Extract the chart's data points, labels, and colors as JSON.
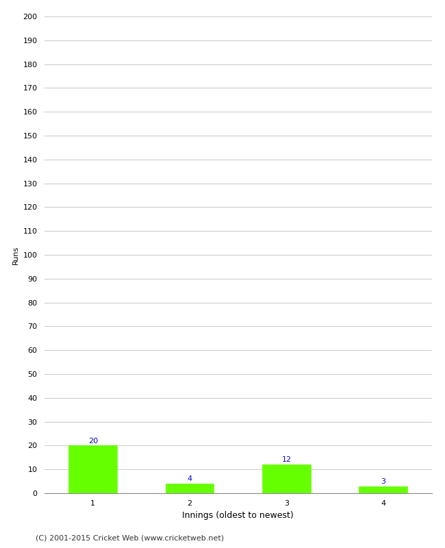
{
  "categories": [
    "1",
    "2",
    "3",
    "4"
  ],
  "values": [
    20,
    4,
    12,
    3
  ],
  "bar_color": "#66ff00",
  "bar_edge_color": "#66ff00",
  "annotation_color": "#0000cc",
  "xlabel": "Innings (oldest to newest)",
  "ylabel": "Runs",
  "ylim": [
    0,
    200
  ],
  "yticks": [
    0,
    10,
    20,
    30,
    40,
    50,
    60,
    70,
    80,
    90,
    100,
    110,
    120,
    130,
    140,
    150,
    160,
    170,
    180,
    190,
    200
  ],
  "background_color": "#ffffff",
  "grid_color": "#cccccc",
  "footer_text": "(C) 2001-2015 Cricket Web (www.cricketweb.net)",
  "annotation_fontsize": 8,
  "xlabel_fontsize": 9,
  "ylabel_fontsize": 8,
  "tick_fontsize": 8,
  "footer_fontsize": 8,
  "bar_width": 0.5
}
